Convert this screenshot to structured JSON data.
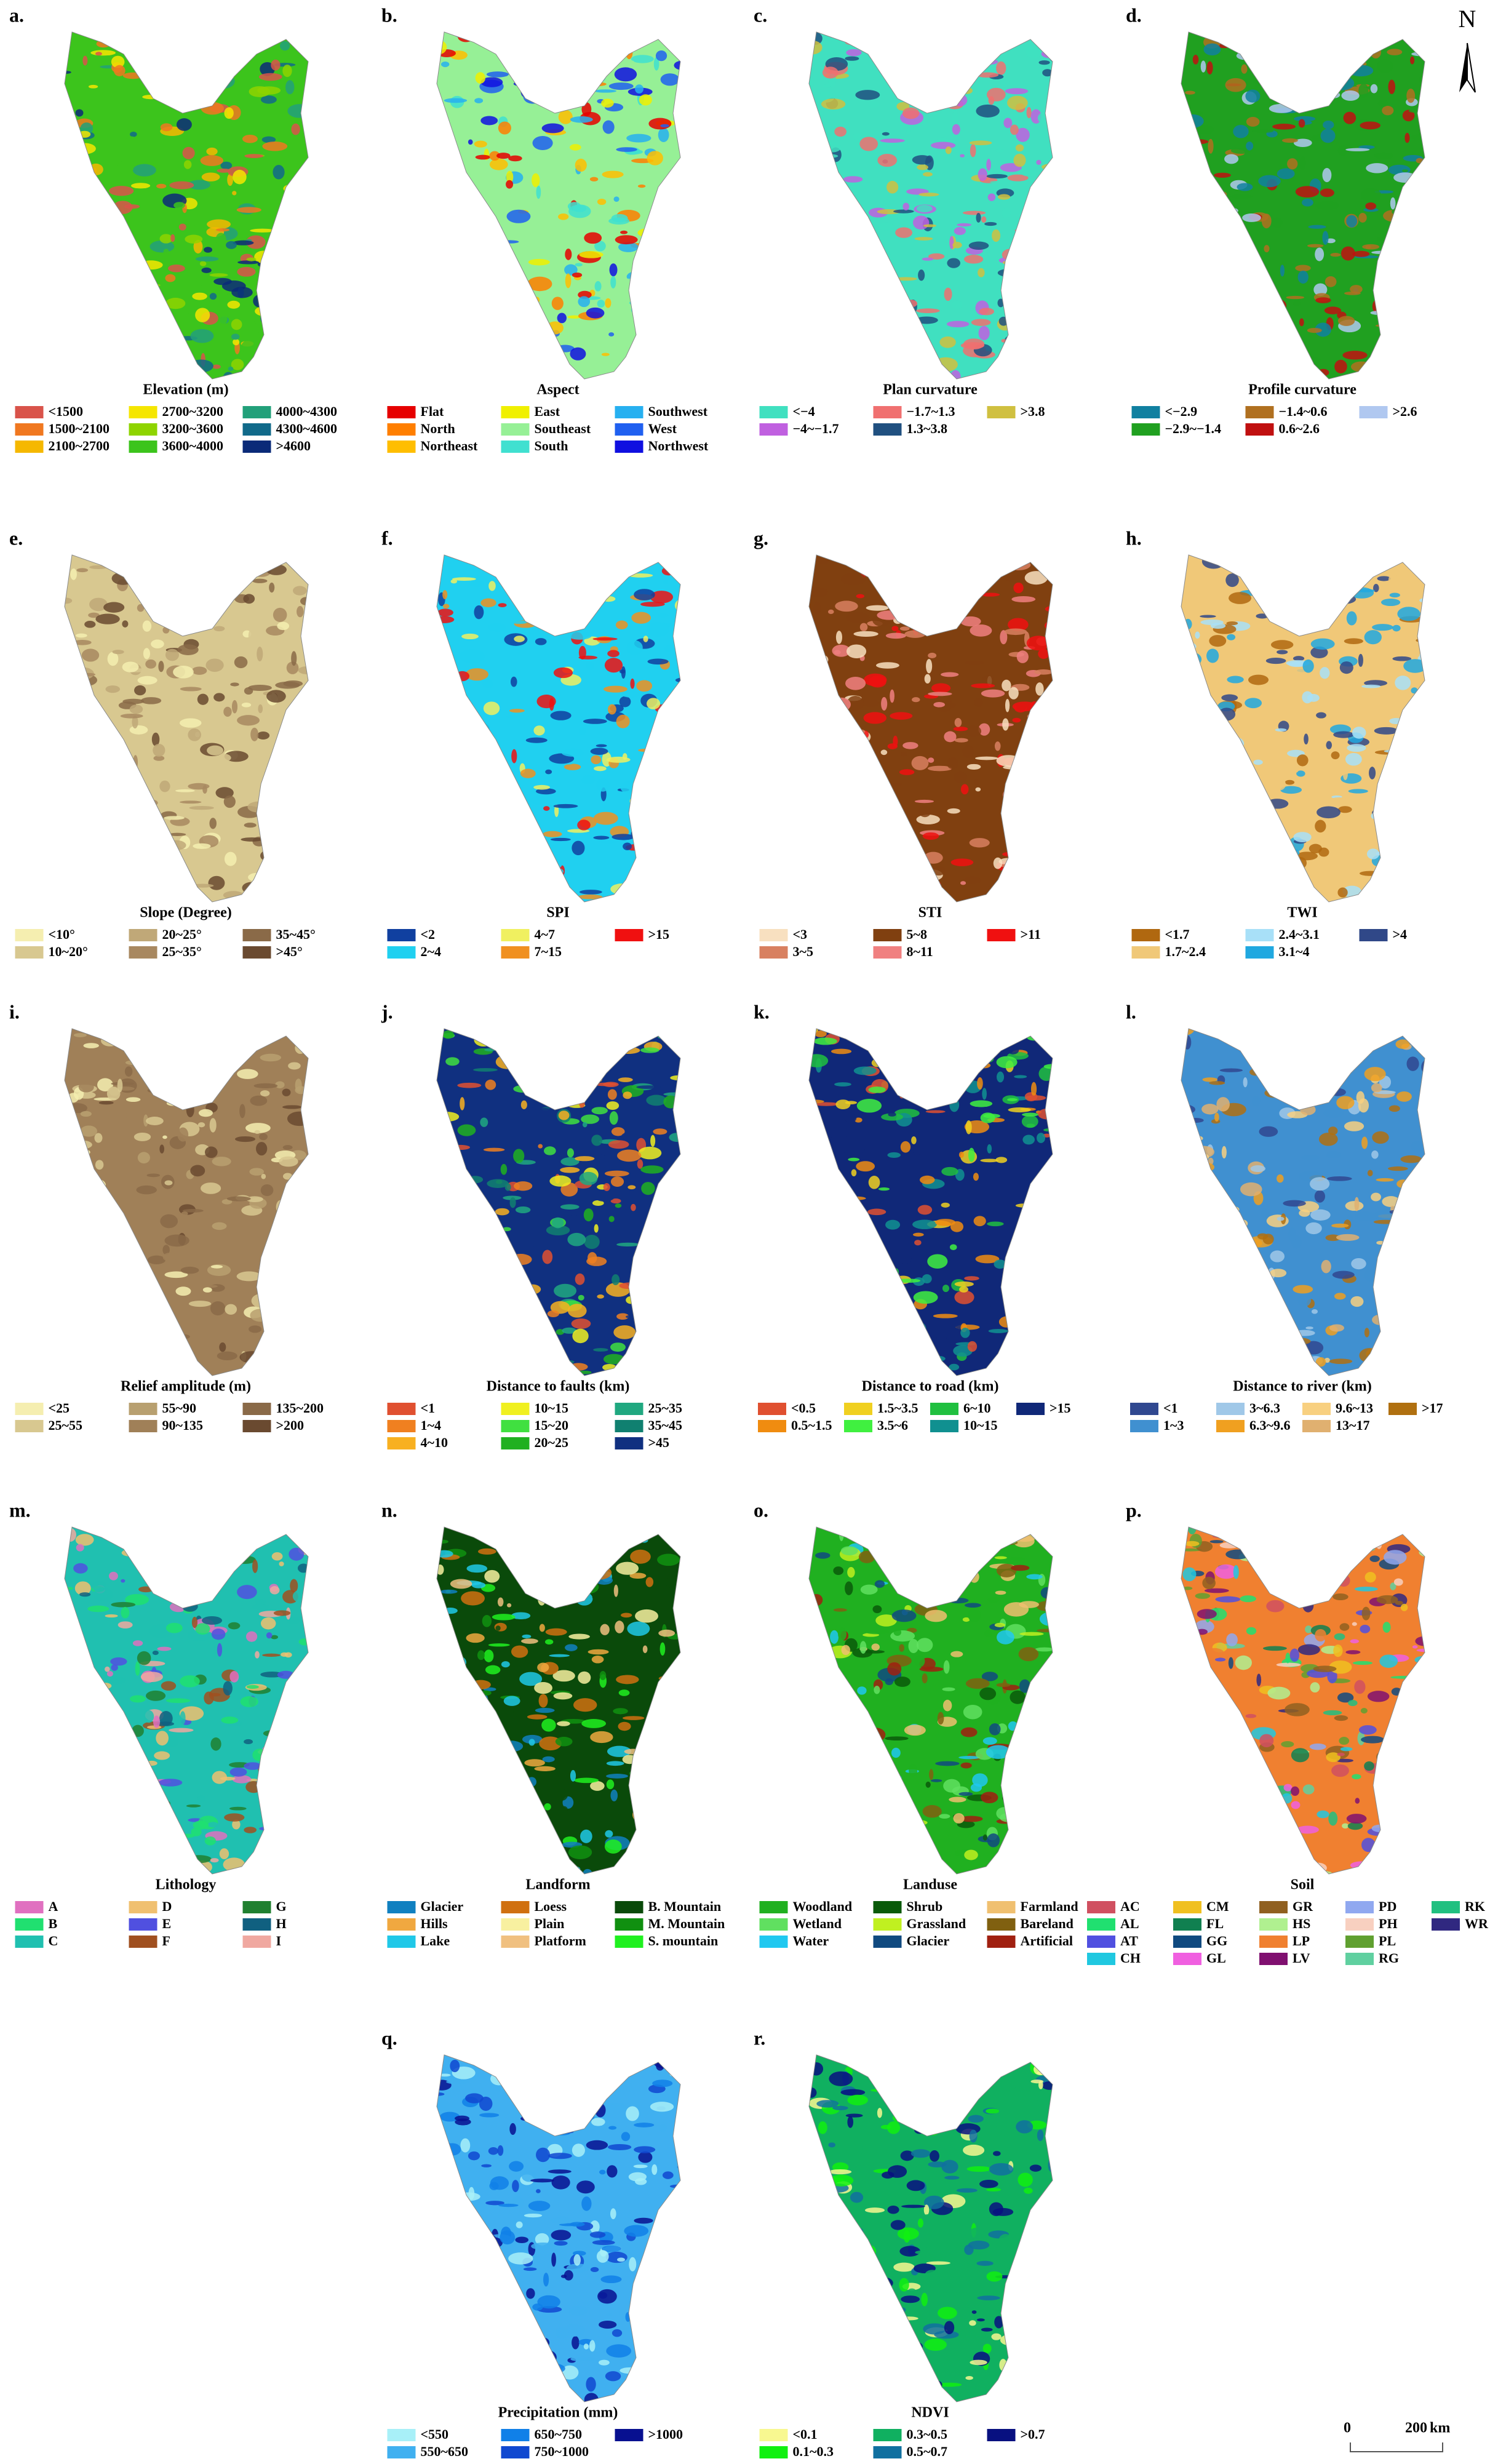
{
  "panels": [
    {
      "letter": "a.",
      "title": "Elevation (m)",
      "legend": [
        {
          "label": "<1500",
          "color": "#d9534a"
        },
        {
          "label": "1500~2100",
          "color": "#f07820"
        },
        {
          "label": "2100~2700",
          "color": "#f5b800"
        },
        {
          "label": "2700~3200",
          "color": "#f5e600"
        },
        {
          "label": "3200~3600",
          "color": "#8ed400"
        },
        {
          "label": "3600~4000",
          "color": "#3cc41c"
        },
        {
          "label": "4000~4300",
          "color": "#22a07a"
        },
        {
          "label": "4300~4600",
          "color": "#116a8a"
        },
        {
          "label": ">4600",
          "color": "#0a2a78"
        }
      ]
    },
    {
      "letter": "b.",
      "title": "Aspect",
      "legend": [
        {
          "label": "Flat",
          "color": "#e60000"
        },
        {
          "label": "North",
          "color": "#ff7f00"
        },
        {
          "label": "Northeast",
          "color": "#ffbe00"
        },
        {
          "label": "East",
          "color": "#f0f000"
        },
        {
          "label": "Southeast",
          "color": "#96f096"
        },
        {
          "label": "South",
          "color": "#40e0d0"
        },
        {
          "label": "Southwest",
          "color": "#27b0f0"
        },
        {
          "label": "West",
          "color": "#2060f0"
        },
        {
          "label": "Northwest",
          "color": "#1010e0"
        }
      ]
    },
    {
      "letter": "c.",
      "title": "Plan curvature",
      "legend": [
        {
          "label": "<−4",
          "color": "#40e0c0"
        },
        {
          "label": "−4~−1.7",
          "color": "#c060e0"
        },
        {
          "label": "−1.7~1.3",
          "color": "#f07070"
        },
        {
          "label": "1.3~3.8",
          "color": "#205080"
        },
        {
          "label": ">3.8",
          "color": "#d0c040"
        }
      ]
    },
    {
      "letter": "d.",
      "title": "Profile curvature",
      "legend": [
        {
          "label": "<−2.9",
          "color": "#1080a0"
        },
        {
          "label": "−2.9~−1.4",
          "color": "#20a020"
        },
        {
          "label": "−1.4~0.6",
          "color": "#b07020"
        },
        {
          "label": "0.6~2.6",
          "color": "#c01010"
        },
        {
          "label": ">2.6",
          "color": "#b0c8f0"
        }
      ]
    },
    {
      "letter": "e.",
      "title": "Slope (Degree)",
      "legend": [
        {
          "label": "<10°",
          "color": "#f5eeb0"
        },
        {
          "label": "10~20°",
          "color": "#d8c890"
        },
        {
          "label": "20~25°",
          "color": "#c0a878"
        },
        {
          "label": "25~35°",
          "color": "#a88860"
        },
        {
          "label": "35~45°",
          "color": "#8a6a48"
        },
        {
          "label": ">45°",
          "color": "#6a4a30"
        }
      ]
    },
    {
      "letter": "f.",
      "title": "SPI",
      "legend": [
        {
          "label": "<2",
          "color": "#1040a0"
        },
        {
          "label": "2~4",
          "color": "#20d0f0"
        },
        {
          "label": "4~7",
          "color": "#f0f060"
        },
        {
          "label": "7~15",
          "color": "#f09020"
        },
        {
          "label": ">15",
          "color": "#f01010"
        }
      ]
    },
    {
      "letter": "g.",
      "title": "STI",
      "legend": [
        {
          "label": "<3",
          "color": "#f8e0c0"
        },
        {
          "label": "3~5",
          "color": "#d88060"
        },
        {
          "label": "5~8",
          "color": "#804010"
        },
        {
          "label": "8~11",
          "color": "#f08080"
        },
        {
          "label": ">11",
          "color": "#f01010"
        }
      ]
    },
    {
      "letter": "h.",
      "title": "TWI",
      "legend": [
        {
          "label": "<1.7",
          "color": "#b06810"
        },
        {
          "label": "1.7~2.4",
          "color": "#f0c878"
        },
        {
          "label": "2.4~3.1",
          "color": "#a8e0f8"
        },
        {
          "label": "3.1~4",
          "color": "#20a8e0"
        },
        {
          "label": ">4",
          "color": "#304888"
        }
      ]
    },
    {
      "letter": "i.",
      "title": "Relief amplitude (m)",
      "legend": [
        {
          "label": "<25",
          "color": "#f5eeb0"
        },
        {
          "label": "25~55",
          "color": "#d8c890"
        },
        {
          "label": "55~90",
          "color": "#b8a070"
        },
        {
          "label": "90~135",
          "color": "#a08058"
        },
        {
          "label": "135~200",
          "color": "#8a6a48"
        },
        {
          "label": ">200",
          "color": "#6a4a30"
        }
      ]
    },
    {
      "letter": "j.",
      "title": "Distance to faults (km)",
      "legend": [
        {
          "label": "<1",
          "color": "#e05030"
        },
        {
          "label": "1~4",
          "color": "#f08020"
        },
        {
          "label": "4~10",
          "color": "#f8b020"
        },
        {
          "label": "10~15",
          "color": "#f0f020"
        },
        {
          "label": "15~20",
          "color": "#40e040"
        },
        {
          "label": "20~25",
          "color": "#20b020"
        },
        {
          "label": "25~35",
          "color": "#20a880"
        },
        {
          "label": "35~45",
          "color": "#108070"
        },
        {
          "label": ">45",
          "color": "#103080"
        }
      ]
    },
    {
      "letter": "k.",
      "title": "Distance to road (km)",
      "legend": [
        {
          "label": "<0.5",
          "color": "#e05030"
        },
        {
          "label": "0.5~1.5",
          "color": "#f08c10"
        },
        {
          "label": "1.5~3.5",
          "color": "#f0d020"
        },
        {
          "label": "3.5~6",
          "color": "#40f040"
        },
        {
          "label": "6~10",
          "color": "#20c040"
        },
        {
          "label": "10~15",
          "color": "#109090"
        },
        {
          "label": ">15",
          "color": "#102878"
        }
      ]
    },
    {
      "letter": "l.",
      "title": "Distance to river (km)",
      "legend": [
        {
          "label": "<1",
          "color": "#304890"
        },
        {
          "label": "1~3",
          "color": "#4090d0"
        },
        {
          "label": "3~6.3",
          "color": "#a0c8e8"
        },
        {
          "label": "6.3~9.6",
          "color": "#f0a020"
        },
        {
          "label": "9.6~13",
          "color": "#f8d080"
        },
        {
          "label": "13~17",
          "color": "#e0b070"
        },
        {
          "label": ">17",
          "color": "#b07010"
        }
      ]
    },
    {
      "letter": "m.",
      "title": "Lithology",
      "legend": [
        {
          "label": "A",
          "color": "#e070c0"
        },
        {
          "label": "B",
          "color": "#20e070"
        },
        {
          "label": "C",
          "color": "#20c0b0"
        },
        {
          "label": "D",
          "color": "#f0c070"
        },
        {
          "label": "E",
          "color": "#5050e0"
        },
        {
          "label": "F",
          "color": "#a05020"
        },
        {
          "label": "G",
          "color": "#208030"
        },
        {
          "label": "H",
          "color": "#106080"
        },
        {
          "label": "I",
          "color": "#f0a8a0"
        }
      ]
    },
    {
      "letter": "n.",
      "title": "Landform",
      "legend": [
        {
          "label": "Glacier",
          "color": "#1080c0"
        },
        {
          "label": "Hills",
          "color": "#f0a840"
        },
        {
          "label": "Lake",
          "color": "#20c8e8"
        },
        {
          "label": "Loess",
          "color": "#d07010"
        },
        {
          "label": "Plain",
          "color": "#f8f0a0"
        },
        {
          "label": "Platform",
          "color": "#f0c080"
        },
        {
          "label": "B. Mountain",
          "color": "#0a4a0a"
        },
        {
          "label": "M. Mountain",
          "color": "#109010"
        },
        {
          "label": "S. mountain",
          "color": "#20f020"
        }
      ]
    },
    {
      "letter": "o.",
      "title": "Landuse",
      "legend": [
        {
          "label": "Woodland",
          "color": "#20b020"
        },
        {
          "label": "Wetland",
          "color": "#60e060"
        },
        {
          "label": "Water",
          "color": "#20c8f0"
        },
        {
          "label": "Shrub",
          "color": "#0a5a0a"
        },
        {
          "label": "Grassland",
          "color": "#c0f020"
        },
        {
          "label": "Glacier",
          "color": "#104a80"
        },
        {
          "label": "Farmland",
          "color": "#f0c070"
        },
        {
          "label": "Bareland",
          "color": "#806010"
        },
        {
          "label": "Artificial",
          "color": "#a02010"
        }
      ]
    },
    {
      "letter": "p.",
      "title": "Soil",
      "legend": [
        {
          "label": "AC",
          "color": "#d05060"
        },
        {
          "label": "AL",
          "color": "#20e070"
        },
        {
          "label": "AT",
          "color": "#5050e0"
        },
        {
          "label": "CH",
          "color": "#20c8e0"
        },
        {
          "label": "CM",
          "color": "#f0c020"
        },
        {
          "label": "FL",
          "color": "#108050"
        },
        {
          "label": "GG",
          "color": "#104a80"
        },
        {
          "label": "GL",
          "color": "#f060e0"
        },
        {
          "label": "GR",
          "color": "#906020"
        },
        {
          "label": "HS",
          "color": "#b0f090"
        },
        {
          "label": "LP",
          "color": "#f08030"
        },
        {
          "label": "LV",
          "color": "#801070"
        },
        {
          "label": "PD",
          "color": "#90a8f0"
        },
        {
          "label": "PH",
          "color": "#f8d0c0"
        },
        {
          "label": "PL",
          "color": "#60a030"
        },
        {
          "label": "RG",
          "color": "#60d0a0"
        },
        {
          "label": "RK",
          "color": "#20c080"
        },
        {
          "label": "WR",
          "color": "#302880"
        }
      ]
    },
    {
      "letter": "q.",
      "title": "Precipitation (mm)",
      "legend": [
        {
          "label": "<550",
          "color": "#a8f0f8"
        },
        {
          "label": "550~650",
          "color": "#40b0f0"
        },
        {
          "label": "650~750",
          "color": "#1080e8"
        },
        {
          "label": "750~1000",
          "color": "#1048d0"
        },
        {
          "label": ">1000",
          "color": "#081090"
        }
      ]
    },
    {
      "letter": "r.",
      "title": "NDVI",
      "legend": [
        {
          "label": "<0.1",
          "color": "#f8f890"
        },
        {
          "label": "0.1~0.3",
          "color": "#10f010"
        },
        {
          "label": "0.3~0.5",
          "color": "#10b060"
        },
        {
          "label": "0.5~0.7",
          "color": "#1070a0"
        },
        {
          "label": ">0.7",
          "color": "#081080"
        }
      ]
    }
  ],
  "north": "N",
  "scale_bar": {
    "start": "0",
    "end": "200",
    "unit": "km"
  }
}
